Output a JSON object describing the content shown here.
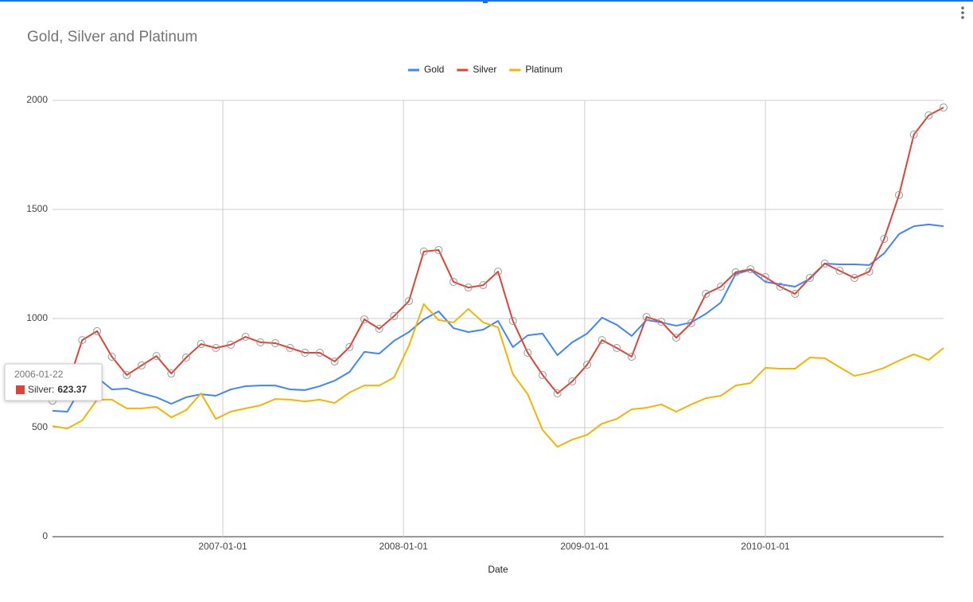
{
  "chart_data": {
    "type": "line",
    "title": "Gold, Silver and Platinum",
    "x_label": "Date",
    "x": [
      "2006-01-22",
      "2006-02-21",
      "2006-03-23",
      "2006-04-22",
      "2006-05-22",
      "2006-06-21",
      "2006-07-21",
      "2006-08-20",
      "2006-09-19",
      "2006-10-19",
      "2006-11-18",
      "2006-12-18",
      "2007-01-17",
      "2007-02-16",
      "2007-03-18",
      "2007-04-17",
      "2007-05-17",
      "2007-06-16",
      "2007-07-16",
      "2007-08-15",
      "2007-09-14",
      "2007-10-14",
      "2007-11-13",
      "2007-12-13",
      "2008-01-12",
      "2008-02-11",
      "2008-03-12",
      "2008-04-11",
      "2008-05-11",
      "2008-06-10",
      "2008-07-10",
      "2008-08-09",
      "2008-09-08",
      "2008-10-08",
      "2008-11-07",
      "2008-12-07",
      "2009-01-06",
      "2009-02-05",
      "2009-03-07",
      "2009-04-06",
      "2009-05-06",
      "2009-06-05",
      "2009-07-05",
      "2009-08-04",
      "2009-09-03",
      "2009-10-03",
      "2009-11-02",
      "2009-12-02",
      "2010-01-01",
      "2010-01-31",
      "2010-03-02",
      "2010-04-01",
      "2010-05-01",
      "2010-05-31",
      "2010-06-30",
      "2010-07-30",
      "2010-08-29",
      "2010-09-28",
      "2010-10-28",
      "2010-11-27",
      "2010-12-27"
    ],
    "series": [
      {
        "name": "Gold",
        "color": "#4285f4",
        "markers": false,
        "values": [
          577,
          573,
          693,
          730,
          675,
          679,
          657,
          639,
          609,
          639,
          653,
          646,
          675,
          690,
          693,
          693,
          675,
          672,
          690,
          715,
          755,
          847,
          839,
          898,
          938,
          996,
          1033,
          956,
          938,
          949,
          989,
          869,
          923,
          931,
          832,
          891,
          931,
          1004,
          971,
          920,
          993,
          982,
          967,
          982,
          1022,
          1073,
          1204,
          1223,
          1168,
          1157,
          1146,
          1182,
          1252,
          1248,
          1248,
          1245,
          1299,
          1387,
          1423,
          1431,
          1423
        ]
      },
      {
        "name": "Silver",
        "color": "#db4437",
        "markers": true,
        "values": [
          623.37,
          690,
          901,
          942,
          825,
          741,
          785,
          828,
          748,
          821,
          883,
          865,
          880,
          916,
          891,
          887,
          865,
          843,
          843,
          803,
          869,
          996,
          953,
          1011,
          1080,
          1307,
          1314,
          1168,
          1142,
          1153,
          1215,
          989,
          843,
          741,
          657,
          712,
          788,
          901,
          865,
          825,
          1007,
          985,
          912,
          978,
          1113,
          1146,
          1212,
          1226,
          1190,
          1146,
          1113,
          1186,
          1252,
          1219,
          1186,
          1215,
          1365,
          1566,
          1843,
          1931,
          1967
        ]
      },
      {
        "name": "Platinum",
        "color": "#f4b400",
        "markers": false,
        "values": [
          507,
          496,
          533,
          628,
          628,
          588,
          588,
          595,
          547,
          580,
          657,
          540,
          573,
          588,
          602,
          631,
          628,
          620,
          628,
          613,
          661,
          693,
          693,
          730,
          876,
          1066,
          993,
          982,
          1044,
          982,
          960,
          745,
          653,
          489,
          412,
          445,
          467,
          518,
          540,
          584,
          591,
          606,
          573,
          606,
          635,
          646,
          693,
          704,
          774,
          770,
          770,
          821,
          818,
          777,
          737,
          752,
          774,
          807,
          836,
          810,
          865
        ]
      }
    ],
    "xlim": [
      "2006-01-22",
      "2010-12-27"
    ],
    "xticks": [
      "2007-01-01",
      "2008-01-01",
      "2009-01-01",
      "2010-01-01"
    ],
    "ylim": [
      0,
      2000
    ],
    "yticks": [
      0,
      500,
      1000,
      1500,
      2000
    ],
    "grid": true,
    "legend": "top",
    "tooltip": {
      "label": "Silver:"
    }
  }
}
